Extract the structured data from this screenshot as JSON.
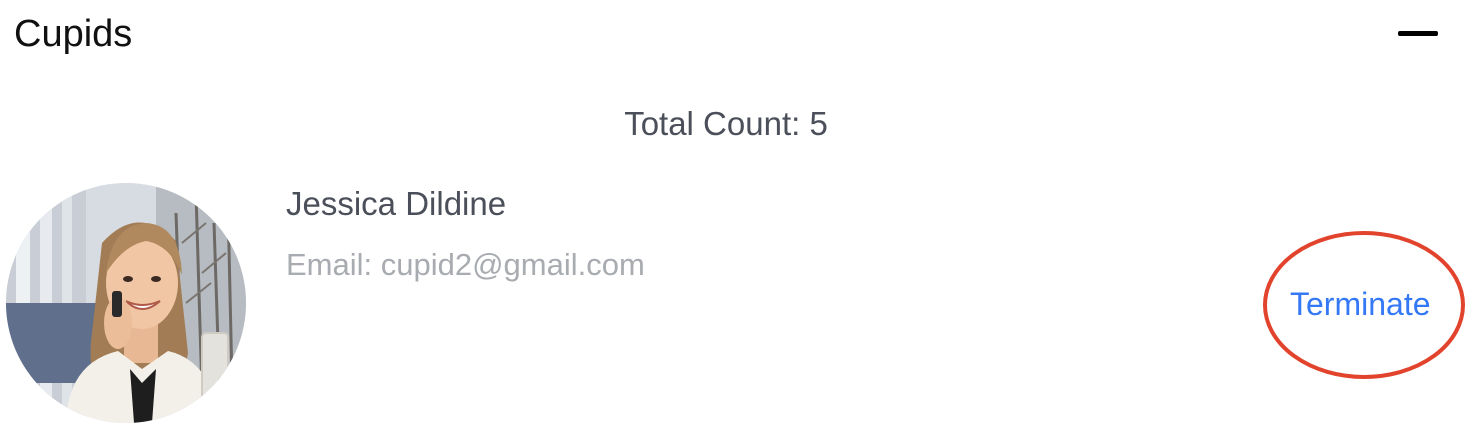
{
  "header": {
    "title": "Cupids"
  },
  "summary": {
    "total_count_text": "Total Count: 5"
  },
  "cupids": [
    {
      "name": "Jessica Dildine",
      "email_text": "Email: cupid2@gmail.com",
      "action_label": "Terminate"
    }
  ],
  "colors": {
    "action": "#3478f6",
    "annotation": "#e2432c",
    "primary_text": "#4a4f59",
    "secondary_text": "#a8abb0"
  },
  "icons": {
    "collapse": "minus-icon"
  }
}
